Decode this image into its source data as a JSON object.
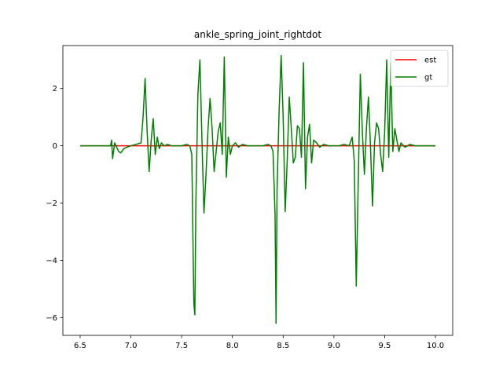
{
  "chart_data": {
    "type": "line",
    "title": "ankle_spring_joint_rightdot",
    "xlabel": "",
    "ylabel": "",
    "xlim": [
      6.33,
      10.17
    ],
    "ylim": [
      -6.62,
      3.5
    ],
    "xticks": [
      6.5,
      7.0,
      7.5,
      8.0,
      8.5,
      9.0,
      9.5,
      10.0
    ],
    "xtick_labels": [
      "6.5",
      "7.0",
      "7.5",
      "8.0",
      "8.5",
      "9.0",
      "9.5",
      "10.0"
    ],
    "yticks": [
      2,
      0,
      -2,
      -4,
      -6
    ],
    "ytick_labels": [
      "2",
      "0",
      "−2",
      "−4",
      "−6"
    ],
    "grid": false,
    "legend_position": "top-right",
    "series": [
      {
        "name": "est",
        "color": "#ff0000",
        "x": [
          6.5,
          10.0
        ],
        "y": [
          0.0,
          0.0
        ]
      },
      {
        "name": "gt",
        "color": "#008000",
        "x": [
          6.5,
          6.8,
          6.81,
          6.82,
          6.84,
          6.86,
          6.88,
          6.9,
          6.93,
          6.96,
          7.0,
          7.05,
          7.1,
          7.12,
          7.14,
          7.16,
          7.18,
          7.2,
          7.22,
          7.24,
          7.26,
          7.28,
          7.3,
          7.33,
          7.36,
          7.4,
          7.45,
          7.5,
          7.55,
          7.58,
          7.6,
          7.62,
          7.63,
          7.64,
          7.66,
          7.68,
          7.7,
          7.72,
          7.74,
          7.76,
          7.78,
          7.8,
          7.82,
          7.84,
          7.86,
          7.88,
          7.9,
          7.92,
          7.94,
          7.96,
          7.98,
          8.0,
          8.03,
          8.06,
          8.1,
          8.15,
          8.2,
          8.25,
          8.3,
          8.35,
          8.38,
          8.4,
          8.42,
          8.43,
          8.44,
          8.46,
          8.48,
          8.5,
          8.52,
          8.54,
          8.56,
          8.58,
          8.6,
          8.62,
          8.64,
          8.66,
          8.68,
          8.7,
          8.72,
          8.74,
          8.76,
          8.78,
          8.8,
          8.83,
          8.86,
          8.9,
          8.95,
          9.0,
          9.05,
          9.1,
          9.15,
          9.18,
          9.2,
          9.22,
          9.24,
          9.26,
          9.28,
          9.3,
          9.32,
          9.34,
          9.36,
          9.38,
          9.4,
          9.42,
          9.44,
          9.46,
          9.48,
          9.5,
          9.52,
          9.54,
          9.56,
          9.58,
          9.6,
          9.62,
          9.64,
          9.66,
          9.7,
          9.75,
          9.8,
          9.85,
          9.9,
          9.95,
          10.0
        ],
        "y": [
          0.0,
          0.0,
          0.2,
          -0.45,
          0.1,
          -0.05,
          -0.2,
          -0.25,
          -0.1,
          -0.05,
          0.0,
          0.05,
          0.1,
          1.0,
          2.35,
          0.5,
          -0.9,
          0.2,
          0.95,
          -0.3,
          0.3,
          -0.1,
          0.1,
          0.0,
          0.05,
          0.0,
          0.0,
          0.0,
          0.05,
          0.0,
          -0.3,
          -5.5,
          -5.9,
          -2.0,
          1.8,
          3.0,
          0.2,
          -2.35,
          -1.0,
          0.6,
          1.65,
          0.6,
          -0.9,
          -0.2,
          0.5,
          0.8,
          -0.3,
          3.1,
          -1.1,
          0.3,
          -0.3,
          0.0,
          0.1,
          -0.05,
          0.05,
          0.0,
          0.0,
          0.0,
          0.0,
          0.05,
          0.0,
          -0.2,
          -2.4,
          -6.2,
          -1.5,
          1.2,
          3.15,
          1.0,
          -2.3,
          -0.5,
          1.7,
          0.6,
          -0.6,
          -0.4,
          0.7,
          0.6,
          -0.4,
          2.9,
          -1.5,
          0.3,
          0.75,
          -0.6,
          0.2,
          0.1,
          -0.05,
          0.05,
          0.0,
          0.0,
          0.0,
          0.05,
          0.0,
          0.3,
          -0.5,
          -4.9,
          -1.2,
          2.5,
          0.5,
          -1.0,
          0.6,
          1.7,
          0.0,
          -2.1,
          0.1,
          0.8,
          0.6,
          -0.3,
          -0.9,
          0.5,
          3.0,
          -0.4,
          2.9,
          -0.2,
          0.6,
          0.2,
          -0.2,
          0.1,
          -0.05,
          0.05,
          0.0,
          0.0,
          0.0,
          0.0,
          0.0
        ]
      }
    ]
  }
}
